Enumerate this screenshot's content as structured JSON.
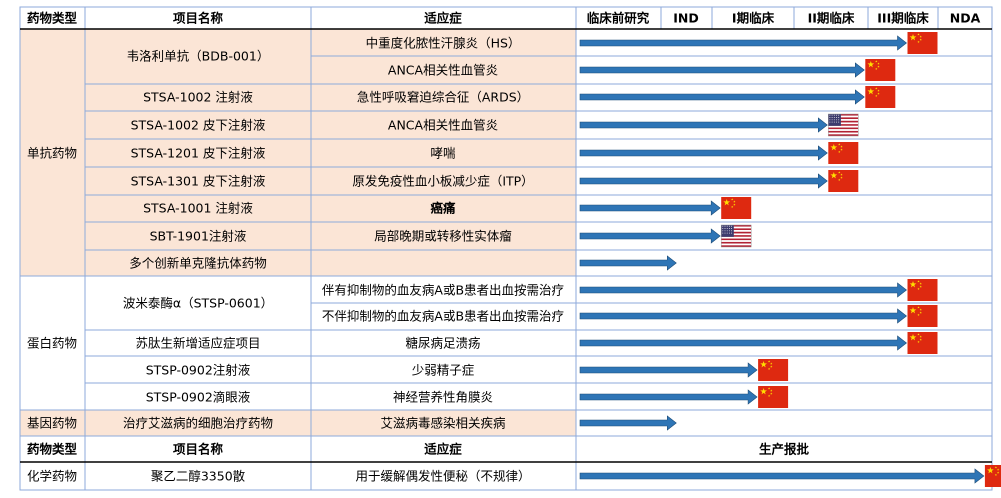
{
  "colors": {
    "row_fill": "#fbe5d6",
    "border": "#8eaadb",
    "arrow": "#2e75b6",
    "header_line": "#000000",
    "cn_flag": "#de2910",
    "cn_star": "#ffde00"
  },
  "header": {
    "category": "药物类型",
    "project": "项目名称",
    "indication": "适应症",
    "phases": [
      "临床前研究",
      "IND",
      "I期临床",
      "II期临床",
      "III期临床",
      "NDA"
    ]
  },
  "header2": {
    "category": "药物类型",
    "project": "项目名称",
    "indication": "适应症",
    "approval": "生产报批"
  },
  "categories": [
    {
      "label": "单抗药物"
    },
    {
      "label": "蛋白药物"
    },
    {
      "label": "基因药物"
    },
    {
      "label": "化学药物"
    }
  ],
  "projects": [
    {
      "label": "韦洛利单抗（BDB-001）"
    },
    {
      "label": "STSA-1002 注射液"
    },
    {
      "label": "STSA-1002 皮下注射液"
    },
    {
      "label": "STSA-1201 皮下注射液"
    },
    {
      "label": "STSA-1301 皮下注射液"
    },
    {
      "label": "STSA-1001 注射液"
    },
    {
      "label": "SBT-1901注射液"
    },
    {
      "label": "多个创新单克隆抗体药物"
    },
    {
      "label": "波米泰酶α（STSP-0601）"
    },
    {
      "label": "苏肽生新增适应症项目"
    },
    {
      "label": "STSP-0902注射液"
    },
    {
      "label": "STSP-0902滴眼液"
    },
    {
      "label": "治疗艾滋病的细胞治疗药物"
    },
    {
      "label": "聚乙二醇3350散"
    }
  ],
  "chart_data": {
    "type": "table",
    "stages": [
      "临床前研究",
      "IND",
      "I期临床",
      "II期临床",
      "III期临床",
      "NDA"
    ],
    "rows": [
      {
        "indication": "中重度化脓性汗腺炎（HS）",
        "progress": 4.55,
        "flag": "CN"
      },
      {
        "indication": "ANCA相关性血管炎",
        "progress": 3.95,
        "flag": "CN"
      },
      {
        "indication": "急性呼吸窘迫综合征（ARDS）",
        "progress": 3.95,
        "flag": "CN"
      },
      {
        "indication": "ANCA相关性血管炎",
        "progress": 3.45,
        "flag": "US"
      },
      {
        "indication": "哮喘",
        "progress": 3.45,
        "flag": "CN"
      },
      {
        "indication": "原发免疫性血小板减少症（ITP）",
        "progress": 3.45,
        "flag": "CN"
      },
      {
        "indication": "癌痛",
        "progress": 2.1,
        "flag": "CN"
      },
      {
        "indication": "局部晚期或转移性实体瘤",
        "progress": 2.1,
        "flag": "US"
      },
      {
        "indication": "",
        "progress": 1.3,
        "flag": ""
      },
      {
        "indication": "伴有抑制物的血友病A或B患者出血按需治疗",
        "progress": 4.55,
        "flag": "CN"
      },
      {
        "indication": "不伴抑制物的血友病A或B患者出血按需治疗",
        "progress": 4.55,
        "flag": "CN"
      },
      {
        "indication": "糖尿病足溃疡",
        "progress": 4.55,
        "flag": "CN"
      },
      {
        "indication": "少弱精子症",
        "progress": 2.55,
        "flag": "CN"
      },
      {
        "indication": "神经营养性角膜炎",
        "progress": 2.55,
        "flag": "CN"
      },
      {
        "indication": "艾滋病毒感染相关疾病",
        "progress": 1.3,
        "flag": ""
      },
      {
        "indication": "用于缓解偶发性便秘（不规律）",
        "progress": 5.85,
        "flag": "CN"
      }
    ]
  }
}
